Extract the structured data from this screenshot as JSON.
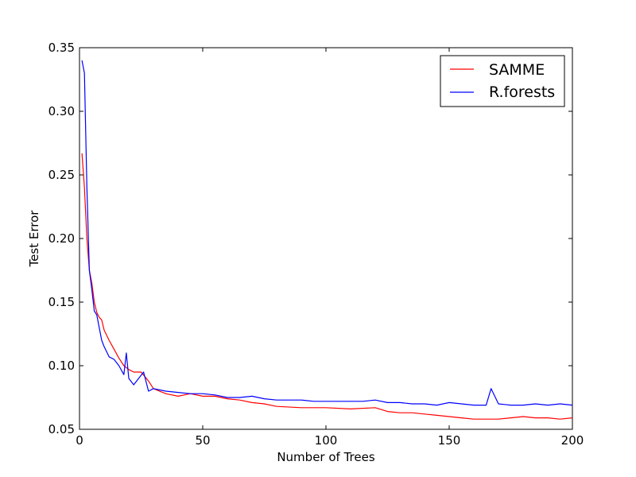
{
  "chart_data": {
    "type": "line",
    "xlabel": "Number of Trees",
    "ylabel": "Test Error",
    "xlim": [
      0,
      200
    ],
    "ylim": [
      0.05,
      0.35
    ],
    "xticks": [
      0,
      50,
      100,
      150,
      200
    ],
    "yticks": [
      0.05,
      0.1,
      0.15,
      0.2,
      0.25,
      0.3,
      0.35
    ],
    "xtick_labels": [
      "0",
      "50",
      "100",
      "150",
      "200"
    ],
    "ytick_labels": [
      "0.05",
      "0.10",
      "0.15",
      "0.20",
      "0.25",
      "0.30",
      "0.35"
    ],
    "grid": false,
    "legend_position": "top-right",
    "series": [
      {
        "name": "SAMME",
        "color": "#ff0000",
        "x": [
          1,
          2,
          3,
          4,
          5,
          6,
          7,
          8,
          9,
          10,
          12,
          14,
          16,
          18,
          20,
          22,
          25,
          28,
          30,
          35,
          40,
          45,
          50,
          55,
          60,
          65,
          70,
          75,
          80,
          90,
          100,
          110,
          120,
          125,
          130,
          135,
          140,
          145,
          150,
          155,
          160,
          165,
          170,
          175,
          180,
          185,
          190,
          195,
          200
        ],
        "values": [
          0.267,
          0.24,
          0.2,
          0.175,
          0.165,
          0.15,
          0.142,
          0.138,
          0.136,
          0.128,
          0.12,
          0.113,
          0.106,
          0.1,
          0.097,
          0.095,
          0.095,
          0.088,
          0.082,
          0.078,
          0.076,
          0.078,
          0.076,
          0.076,
          0.074,
          0.073,
          0.071,
          0.07,
          0.068,
          0.067,
          0.067,
          0.066,
          0.067,
          0.064,
          0.063,
          0.063,
          0.062,
          0.061,
          0.06,
          0.059,
          0.058,
          0.058,
          0.058,
          0.059,
          0.06,
          0.059,
          0.059,
          0.058,
          0.059
        ]
      },
      {
        "name": "R.forests",
        "color": "#0000ff",
        "x": [
          1,
          2,
          3,
          4,
          5,
          6,
          7,
          8,
          9,
          10,
          12,
          14,
          16,
          18,
          19,
          20,
          22,
          24,
          26,
          28,
          30,
          35,
          40,
          45,
          50,
          55,
          60,
          65,
          70,
          75,
          80,
          85,
          90,
          95,
          100,
          105,
          110,
          115,
          120,
          125,
          130,
          135,
          140,
          145,
          150,
          155,
          160,
          165,
          167,
          170,
          175,
          180,
          185,
          190,
          195,
          200
        ],
        "values": [
          0.34,
          0.33,
          0.24,
          0.175,
          0.16,
          0.143,
          0.14,
          0.13,
          0.12,
          0.115,
          0.107,
          0.105,
          0.1,
          0.093,
          0.11,
          0.09,
          0.085,
          0.09,
          0.095,
          0.08,
          0.082,
          0.08,
          0.079,
          0.078,
          0.078,
          0.077,
          0.075,
          0.075,
          0.076,
          0.074,
          0.073,
          0.073,
          0.073,
          0.072,
          0.072,
          0.072,
          0.072,
          0.072,
          0.073,
          0.071,
          0.071,
          0.07,
          0.07,
          0.069,
          0.071,
          0.07,
          0.069,
          0.069,
          0.082,
          0.07,
          0.069,
          0.069,
          0.07,
          0.069,
          0.07,
          0.069
        ]
      }
    ]
  }
}
